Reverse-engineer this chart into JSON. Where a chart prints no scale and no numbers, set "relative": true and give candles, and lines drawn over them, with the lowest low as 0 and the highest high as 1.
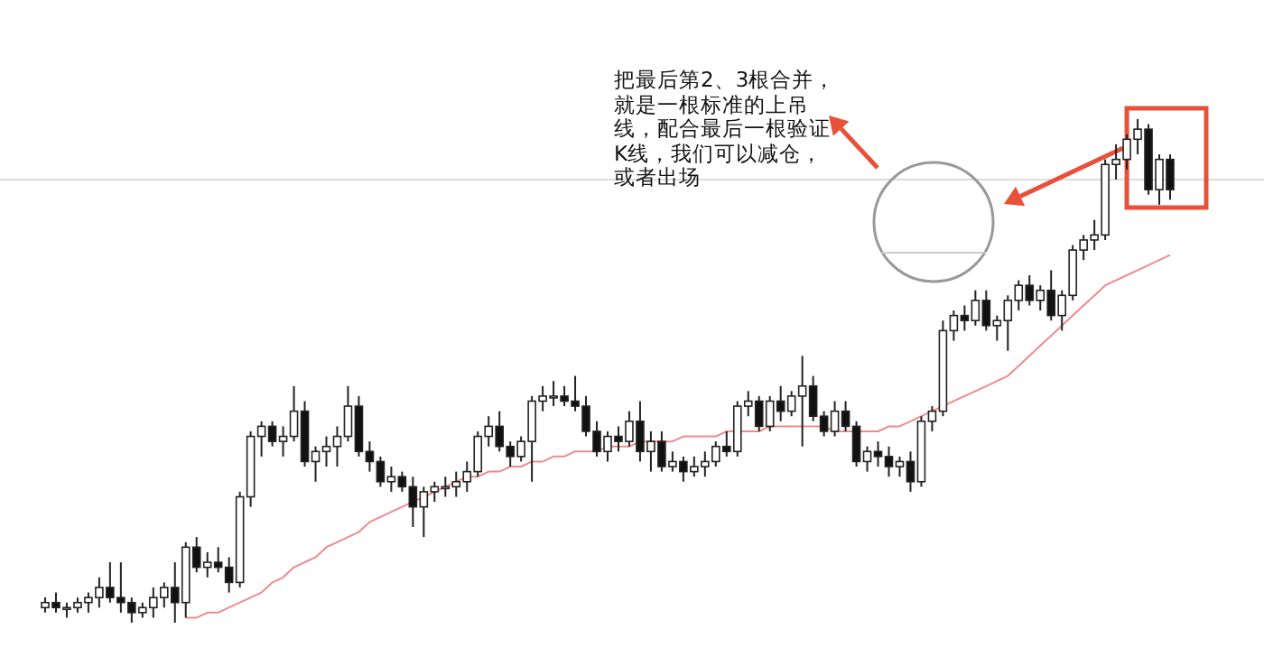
{
  "chart_data": {
    "type": "candlestick",
    "relative": true,
    "categories": [
      null,
      null,
      null,
      null,
      null,
      null,
      null,
      null,
      null,
      null,
      null,
      null,
      null,
      null,
      null,
      null,
      null,
      null,
      null,
      null,
      null,
      null,
      null,
      null,
      null,
      null,
      null,
      null,
      null,
      null,
      null,
      null,
      null,
      null,
      null,
      null,
      null,
      null,
      null,
      null,
      null,
      null,
      null,
      null,
      null,
      null,
      null,
      null,
      null,
      null,
      null,
      null,
      null,
      null,
      null,
      null,
      null,
      null,
      null,
      null,
      null,
      null,
      null,
      null,
      null,
      null,
      null,
      null,
      null,
      null,
      null,
      null,
      null,
      null,
      null,
      null,
      null,
      null,
      null,
      null,
      null,
      null,
      null,
      null,
      null,
      null,
      null,
      null,
      null,
      null,
      null,
      null,
      null,
      null,
      null,
      null,
      null,
      null,
      null,
      null,
      null,
      null,
      null,
      null,
      null
    ],
    "ohlc": [
      [
        0.03,
        0.05,
        0.02,
        0.04
      ],
      [
        0.04,
        0.06,
        0.02,
        0.03
      ],
      [
        0.03,
        0.04,
        0.01,
        0.03
      ],
      [
        0.03,
        0.05,
        0.02,
        0.04
      ],
      [
        0.04,
        0.06,
        0.02,
        0.05
      ],
      [
        0.05,
        0.09,
        0.03,
        0.07
      ],
      [
        0.07,
        0.12,
        0.04,
        0.05
      ],
      [
        0.05,
        0.12,
        0.02,
        0.04
      ],
      [
        0.04,
        0.05,
        0.0,
        0.02
      ],
      [
        0.02,
        0.04,
        0.01,
        0.03
      ],
      [
        0.03,
        0.07,
        0.01,
        0.05
      ],
      [
        0.05,
        0.08,
        0.03,
        0.07
      ],
      [
        0.07,
        0.12,
        0.0,
        0.04
      ],
      [
        0.04,
        0.16,
        0.01,
        0.15
      ],
      [
        0.15,
        0.17,
        0.1,
        0.11
      ],
      [
        0.11,
        0.14,
        0.09,
        0.12
      ],
      [
        0.12,
        0.15,
        0.1,
        0.11
      ],
      [
        0.11,
        0.13,
        0.06,
        0.08
      ],
      [
        0.08,
        0.26,
        0.07,
        0.25
      ],
      [
        0.25,
        0.38,
        0.23,
        0.37
      ],
      [
        0.37,
        0.4,
        0.33,
        0.39
      ],
      [
        0.39,
        0.4,
        0.35,
        0.36
      ],
      [
        0.36,
        0.39,
        0.33,
        0.37
      ],
      [
        0.37,
        0.47,
        0.36,
        0.42
      ],
      [
        0.42,
        0.44,
        0.31,
        0.32
      ],
      [
        0.32,
        0.35,
        0.28,
        0.34
      ],
      [
        0.34,
        0.37,
        0.31,
        0.35
      ],
      [
        0.35,
        0.39,
        0.31,
        0.37
      ],
      [
        0.37,
        0.47,
        0.36,
        0.43
      ],
      [
        0.43,
        0.45,
        0.33,
        0.34
      ],
      [
        0.34,
        0.36,
        0.3,
        0.32
      ],
      [
        0.32,
        0.33,
        0.27,
        0.28
      ],
      [
        0.28,
        0.31,
        0.26,
        0.29
      ],
      [
        0.29,
        0.3,
        0.26,
        0.27
      ],
      [
        0.27,
        0.29,
        0.19,
        0.23
      ],
      [
        0.23,
        0.27,
        0.17,
        0.26
      ],
      [
        0.26,
        0.28,
        0.24,
        0.27
      ],
      [
        0.27,
        0.29,
        0.25,
        0.27
      ],
      [
        0.27,
        0.3,
        0.25,
        0.28
      ],
      [
        0.28,
        0.32,
        0.26,
        0.3
      ],
      [
        0.3,
        0.38,
        0.29,
        0.37
      ],
      [
        0.37,
        0.41,
        0.35,
        0.39
      ],
      [
        0.39,
        0.42,
        0.34,
        0.35
      ],
      [
        0.35,
        0.36,
        0.31,
        0.33
      ],
      [
        0.33,
        0.37,
        0.32,
        0.36
      ],
      [
        0.36,
        0.45,
        0.28,
        0.44
      ],
      [
        0.44,
        0.47,
        0.42,
        0.45
      ],
      [
        0.45,
        0.48,
        0.43,
        0.45
      ],
      [
        0.45,
        0.47,
        0.43,
        0.44
      ],
      [
        0.44,
        0.49,
        0.42,
        0.43
      ],
      [
        0.43,
        0.45,
        0.37,
        0.38
      ],
      [
        0.38,
        0.4,
        0.33,
        0.34
      ],
      [
        0.34,
        0.38,
        0.32,
        0.37
      ],
      [
        0.37,
        0.39,
        0.34,
        0.36
      ],
      [
        0.36,
        0.42,
        0.35,
        0.4
      ],
      [
        0.4,
        0.44,
        0.32,
        0.34
      ],
      [
        0.34,
        0.38,
        0.3,
        0.36
      ],
      [
        0.36,
        0.38,
        0.3,
        0.31
      ],
      [
        0.31,
        0.34,
        0.3,
        0.32
      ],
      [
        0.32,
        0.33,
        0.28,
        0.3
      ],
      [
        0.3,
        0.33,
        0.29,
        0.31
      ],
      [
        0.31,
        0.34,
        0.29,
        0.32
      ],
      [
        0.32,
        0.36,
        0.31,
        0.35
      ],
      [
        0.35,
        0.38,
        0.33,
        0.34
      ],
      [
        0.34,
        0.44,
        0.33,
        0.43
      ],
      [
        0.43,
        0.46,
        0.41,
        0.44
      ],
      [
        0.44,
        0.45,
        0.38,
        0.39
      ],
      [
        0.39,
        0.45,
        0.38,
        0.44
      ],
      [
        0.44,
        0.47,
        0.4,
        0.42
      ],
      [
        0.42,
        0.46,
        0.41,
        0.45
      ],
      [
        0.45,
        0.53,
        0.35,
        0.47
      ],
      [
        0.47,
        0.49,
        0.4,
        0.41
      ],
      [
        0.41,
        0.42,
        0.37,
        0.38
      ],
      [
        0.38,
        0.44,
        0.37,
        0.42
      ],
      [
        0.42,
        0.44,
        0.38,
        0.39
      ],
      [
        0.39,
        0.4,
        0.31,
        0.32
      ],
      [
        0.32,
        0.35,
        0.3,
        0.34
      ],
      [
        0.34,
        0.36,
        0.31,
        0.33
      ],
      [
        0.33,
        0.35,
        0.29,
        0.31
      ],
      [
        0.31,
        0.33,
        0.29,
        0.32
      ],
      [
        0.32,
        0.34,
        0.26,
        0.28
      ],
      [
        0.28,
        0.41,
        0.27,
        0.4
      ],
      [
        0.4,
        0.43,
        0.38,
        0.42
      ],
      [
        0.42,
        0.6,
        0.41,
        0.58
      ],
      [
        0.58,
        0.62,
        0.56,
        0.61
      ],
      [
        0.61,
        0.63,
        0.58,
        0.6
      ],
      [
        0.6,
        0.66,
        0.59,
        0.64
      ],
      [
        0.64,
        0.66,
        0.58,
        0.59
      ],
      [
        0.59,
        0.61,
        0.56,
        0.6
      ],
      [
        0.6,
        0.65,
        0.54,
        0.64
      ],
      [
        0.64,
        0.68,
        0.62,
        0.67
      ],
      [
        0.67,
        0.69,
        0.63,
        0.64
      ],
      [
        0.64,
        0.67,
        0.62,
        0.66
      ],
      [
        0.66,
        0.7,
        0.6,
        0.61
      ],
      [
        0.61,
        0.66,
        0.58,
        0.65
      ],
      [
        0.65,
        0.75,
        0.64,
        0.74
      ],
      [
        0.74,
        0.77,
        0.72,
        0.76
      ],
      [
        0.76,
        0.8,
        0.74,
        0.77
      ],
      [
        0.77,
        0.92,
        0.76,
        0.91
      ],
      [
        0.91,
        0.95,
        0.88,
        0.92
      ],
      [
        0.92,
        0.97,
        0.9,
        0.96
      ],
      [
        0.96,
        1.0,
        0.93,
        0.98
      ],
      [
        0.98,
        0.99,
        0.85,
        0.86
      ],
      [
        0.86,
        0.93,
        0.83,
        0.92
      ],
      [
        0.92,
        0.93,
        0.84,
        0.86
      ]
    ],
    "series": [
      {
        "type": "line",
        "color": "#f08a8a",
        "values": [
          null,
          null,
          null,
          null,
          null,
          null,
          null,
          null,
          null,
          null,
          null,
          null,
          null,
          0.01,
          0.01,
          0.02,
          0.02,
          0.03,
          0.04,
          0.05,
          0.06,
          0.08,
          0.09,
          0.11,
          0.12,
          0.13,
          0.15,
          0.16,
          0.17,
          0.18,
          0.2,
          0.21,
          0.22,
          0.23,
          0.24,
          0.25,
          0.26,
          0.27,
          0.28,
          0.29,
          0.29,
          0.3,
          0.3,
          0.31,
          0.31,
          0.32,
          0.32,
          0.33,
          0.33,
          0.34,
          0.34,
          0.34,
          0.35,
          0.35,
          0.35,
          0.36,
          0.36,
          0.36,
          0.36,
          0.37,
          0.37,
          0.37,
          0.37,
          0.38,
          0.38,
          0.38,
          0.38,
          0.39,
          0.39,
          0.39,
          0.39,
          0.39,
          0.39,
          0.38,
          0.38,
          0.38,
          0.38,
          0.38,
          0.39,
          0.39,
          0.4,
          0.41,
          0.42,
          0.43,
          0.44,
          0.45,
          0.46,
          0.47,
          0.48,
          0.49,
          0.51,
          0.53,
          0.55,
          0.57,
          0.59,
          0.61,
          0.63,
          0.65,
          0.67,
          0.68,
          0.69,
          0.7,
          0.71,
          0.72,
          0.73
        ]
      }
    ],
    "ref_lines": [
      {
        "axis": "y",
        "value": 0.88,
        "color": "#dddddd"
      }
    ],
    "annotations": [
      "把最后第2、3根合并，就是一根标准的上吊线，配合最后一根验证K线，我们可以减仓，或者出场"
    ]
  }
}
